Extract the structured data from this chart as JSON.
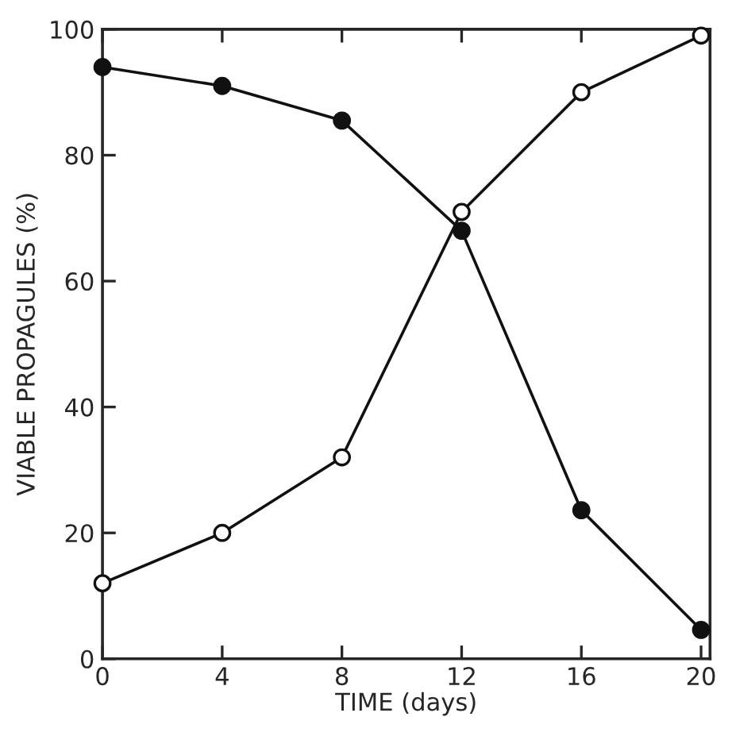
{
  "chart_data": {
    "type": "line",
    "xlabel": "TIME (days)",
    "ylabel": "VIABLE PROPAGULES (%)",
    "x": [
      0,
      4,
      8,
      12,
      16,
      20
    ],
    "series": [
      {
        "color": "#111111",
        "values": [
          94,
          91,
          85.5,
          68,
          23.6,
          4.6
        ],
        "marker": "circle"
      },
      {
        "color": "#111111",
        "values": [
          12,
          20,
          32,
          71,
          90,
          99
        ],
        "marker": "circle"
      }
    ],
    "xlim": [
      0,
      20.3
    ],
    "ylim": [
      0,
      100
    ],
    "xticks": [
      0,
      4,
      8,
      12,
      16,
      20
    ],
    "yticks": [
      0,
      20,
      40,
      60,
      80,
      100
    ],
    "grid": false,
    "legend": false,
    "line_style": "solid"
  }
}
